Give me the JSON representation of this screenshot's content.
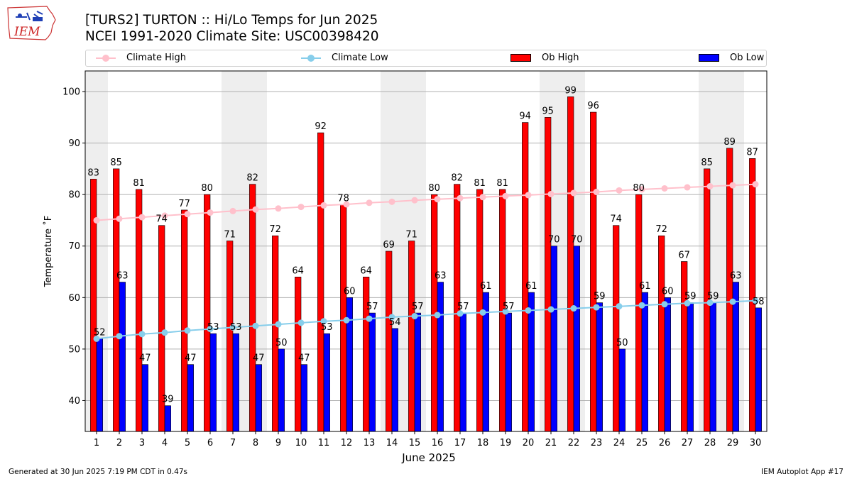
{
  "header": {
    "title_line1": "[TURS2] TURTON :: Hi/Lo Temps for Jun 2025",
    "title_line2": "NCEI 1991-2020 Climate Site: USC00398420",
    "logo_text": "IEM"
  },
  "footer": {
    "left": "Generated at 30 Jun 2025 7:19 PM CDT in 0.47s",
    "right": "IEM Autoplot App #17"
  },
  "colors": {
    "ob_high": "#ff0000",
    "ob_low": "#0000ff",
    "climate_high": "#ffc0cb",
    "climate_low": "#87ceeb",
    "weekend_shade": "#eeeeee",
    "grid": "#b0b0b0"
  },
  "chart_data": {
    "type": "bar",
    "xlabel": "June 2025",
    "ylabel": "Temperature ˚F",
    "ylim": [
      34,
      104
    ],
    "yticks": [
      40,
      50,
      60,
      70,
      80,
      90,
      100
    ],
    "grid": "horizontal",
    "legend_position": "top",
    "categories": [
      "1",
      "2",
      "3",
      "4",
      "5",
      "6",
      "7",
      "8",
      "9",
      "10",
      "11",
      "12",
      "13",
      "14",
      "15",
      "16",
      "17",
      "18",
      "19",
      "20",
      "21",
      "22",
      "23",
      "24",
      "25",
      "26",
      "27",
      "28",
      "29",
      "30"
    ],
    "shaded_days": [
      1,
      7,
      8,
      14,
      15,
      21,
      22,
      28,
      29
    ],
    "series": [
      {
        "name": "Climate High",
        "kind": "line",
        "values": [
          75.0,
          75.3,
          75.6,
          75.9,
          76.2,
          76.5,
          76.8,
          77.1,
          77.3,
          77.6,
          77.9,
          78.1,
          78.4,
          78.6,
          78.9,
          79.1,
          79.3,
          79.5,
          79.7,
          79.9,
          80.1,
          80.3,
          80.5,
          80.8,
          81.0,
          81.2,
          81.4,
          81.6,
          81.8,
          82.0
        ]
      },
      {
        "name": "Climate Low",
        "kind": "line",
        "values": [
          52.0,
          52.5,
          52.9,
          53.2,
          53.6,
          53.9,
          54.2,
          54.5,
          54.8,
          55.1,
          55.4,
          55.6,
          55.9,
          56.2,
          56.4,
          56.6,
          56.9,
          57.1,
          57.3,
          57.5,
          57.7,
          57.9,
          58.1,
          58.3,
          58.5,
          58.7,
          58.9,
          59.0,
          59.2,
          59.4
        ]
      },
      {
        "name": "Ob High",
        "kind": "bar",
        "values": [
          83,
          85,
          81,
          74,
          77,
          80,
          71,
          82,
          72,
          64,
          92,
          78,
          64,
          69,
          71,
          80,
          82,
          81,
          81,
          94,
          95,
          99,
          96,
          74,
          80,
          72,
          67,
          85,
          89,
          87
        ]
      },
      {
        "name": "Ob Low",
        "kind": "bar",
        "values": [
          52,
          63,
          47,
          39,
          47,
          53,
          53,
          47,
          50,
          47,
          53,
          60,
          57,
          54,
          57,
          63,
          57,
          61,
          57,
          61,
          70,
          70,
          59,
          50,
          61,
          60,
          59,
          59,
          63,
          58
        ]
      }
    ]
  }
}
